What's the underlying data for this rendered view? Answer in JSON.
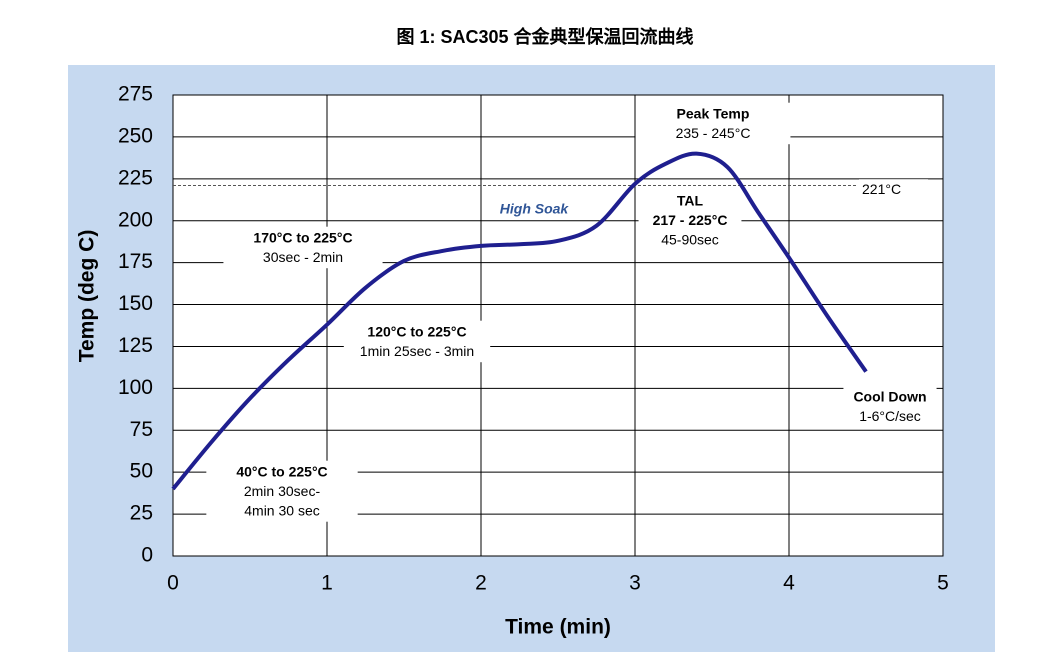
{
  "chart_data": {
    "type": "line",
    "title": "图 1: SAC305 合金典型保温回流曲线",
    "xlabel": "Time (min)",
    "ylabel": "Temp (deg C)",
    "x": [
      0,
      0.25,
      0.5,
      0.75,
      1,
      1.25,
      1.5,
      1.75,
      2,
      2.25,
      2.5,
      2.75,
      3,
      3.2,
      3.4,
      3.6,
      3.8,
      4,
      4.25,
      4.5
    ],
    "values": [
      40,
      68,
      94,
      117,
      138,
      160,
      176,
      182,
      185,
      186,
      188,
      197,
      222,
      234,
      240,
      232,
      205,
      178,
      143,
      110
    ],
    "color": "#1f1f8f",
    "xlim": [
      0,
      5
    ],
    "xticks": [
      0,
      1,
      2,
      3,
      4,
      5
    ],
    "ylim": [
      0,
      275
    ],
    "yticks": [
      0,
      25,
      50,
      75,
      100,
      125,
      150,
      175,
      200,
      225,
      250,
      275
    ],
    "grid": true,
    "threshold": {
      "value": 221,
      "label": "221°C"
    },
    "annotations": [
      {
        "lines": [
          "Peak Temp",
          "235 - 245°C"
        ]
      },
      {
        "lines": [
          "TAL",
          "217 - 225°C",
          "45-90sec"
        ]
      },
      {
        "lines": [
          "High Soak"
        ]
      },
      {
        "lines": [
          "170°C to 225°C",
          "30sec - 2min"
        ]
      },
      {
        "lines": [
          "120°C to 225°C",
          "1min 25sec  - 3min"
        ]
      },
      {
        "lines": [
          "40°C to 225°C",
          "2min 30sec-",
          "4min 30 sec"
        ]
      },
      {
        "lines": [
          "Cool Down",
          "1-6°C/sec"
        ]
      }
    ]
  }
}
